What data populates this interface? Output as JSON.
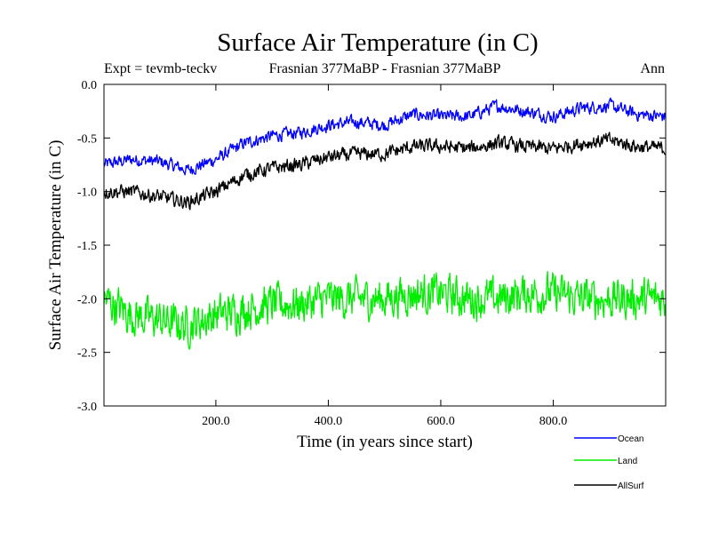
{
  "chart_data": {
    "type": "line",
    "title": "Surface Air Temperature (in C)",
    "subtitle_left": "Expt = tevmb-teckv",
    "subtitle_center": "Frasnian 377MaBP - Frasnian 377MaBP",
    "subtitle_right": "Ann",
    "xlabel": "Time (in years since start)",
    "ylabel": "Surface Air Temperature (in C)",
    "xlim": [
      1,
      1000
    ],
    "ylim": [
      -3.0,
      0.0
    ],
    "x_ticks": [
      200,
      400,
      600,
      800
    ],
    "x_tick_labels": [
      "200.0",
      "400.0",
      "600.0",
      "800.0"
    ],
    "y_ticks": [
      0.0,
      -0.5,
      -1.0,
      -1.5,
      -2.0,
      -2.5,
      -3.0
    ],
    "y_tick_labels": [
      "0.0",
      "-0.5",
      "-1.0",
      "-1.5",
      "-2.0",
      "-2.5",
      "-3.0"
    ],
    "grid": false,
    "legend_position": "bottom-right",
    "series": [
      {
        "name": "Ocean",
        "color": "#0000ff",
        "x": [
          0,
          50,
          100,
          150,
          200,
          250,
          300,
          350,
          400,
          450,
          500,
          550,
          600,
          650,
          700,
          750,
          800,
          850,
          900,
          950,
          1000
        ],
        "values": [
          -0.75,
          -0.7,
          -0.72,
          -0.8,
          -0.7,
          -0.55,
          -0.48,
          -0.45,
          -0.38,
          -0.35,
          -0.38,
          -0.28,
          -0.3,
          -0.3,
          -0.2,
          -0.25,
          -0.3,
          -0.22,
          -0.2,
          -0.28,
          -0.3
        ]
      },
      {
        "name": "Land",
        "color": "#00ee00",
        "x": [
          0,
          50,
          100,
          150,
          200,
          250,
          300,
          350,
          400,
          450,
          500,
          550,
          600,
          650,
          700,
          750,
          800,
          850,
          900,
          950,
          1000
        ],
        "values": [
          -2.0,
          -2.15,
          -2.2,
          -2.25,
          -2.15,
          -2.1,
          -2.05,
          -2.05,
          -2.0,
          -2.0,
          -2.0,
          -1.95,
          -1.95,
          -2.0,
          -2.0,
          -1.95,
          -1.95,
          -2.0,
          -2.0,
          -2.0,
          -2.0
        ]
      },
      {
        "name": "AllSurf",
        "color": "#000000",
        "x": [
          0,
          50,
          100,
          150,
          200,
          250,
          300,
          350,
          400,
          450,
          500,
          550,
          600,
          650,
          700,
          750,
          800,
          850,
          900,
          950,
          1000
        ],
        "values": [
          -1.0,
          -1.0,
          -1.05,
          -1.1,
          -1.0,
          -0.85,
          -0.78,
          -0.75,
          -0.68,
          -0.65,
          -0.65,
          -0.58,
          -0.58,
          -0.6,
          -0.55,
          -0.58,
          -0.6,
          -0.55,
          -0.52,
          -0.58,
          -0.6
        ]
      }
    ]
  }
}
